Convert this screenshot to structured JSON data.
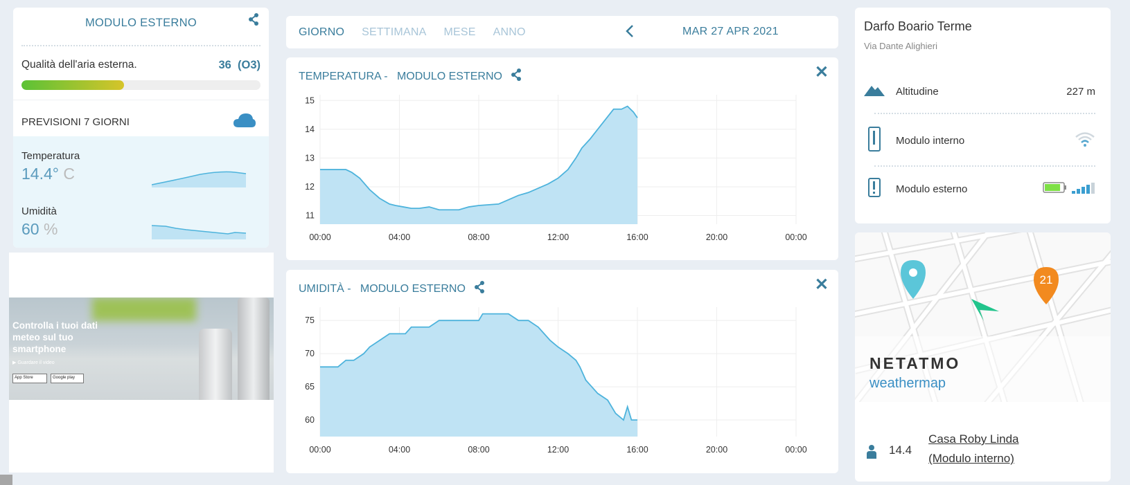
{
  "left_panel": {
    "title": "MODULO ESTERNO",
    "air_quality_label": "Qualità dell'aria esterna.",
    "air_quality_value": "36",
    "air_quality_unit": "(O3)",
    "air_quality_fraction": 0.43,
    "forecast_label": "PREVISIONI 7 GIORNI",
    "temperature_label": "Temperatura",
    "temperature_value": "14.4°",
    "temperature_unit": "C",
    "humidity_label": "Umidità",
    "humidity_value": "60",
    "humidity_unit": "%"
  },
  "ad": {
    "headline": "Controlla i tuoi dati meteo sul tuo smartphone",
    "video_link": "Guardare il video",
    "badge_app_store": "App Store",
    "badge_google": "Google play"
  },
  "nav": {
    "tabs": [
      "GIORNO",
      "SETTIMANA",
      "MESE",
      "ANNO"
    ],
    "active_tab": "GIORNO",
    "date": "MAR 27 APR 2021"
  },
  "temperature_chart": {
    "title": "TEMPERATURA -",
    "module": "MODULO ESTERNO"
  },
  "humidity_chart": {
    "title": "UMIDITÀ -",
    "module": "MODULO ESTERNO"
  },
  "chart_data": [
    {
      "type": "area",
      "title": "TEMPERATURA - MODULO ESTERNO",
      "x_ticks": [
        "00:00",
        "04:00",
        "08:00",
        "12:00",
        "16:00",
        "20:00",
        "00:00"
      ],
      "y_ticks": [
        11,
        12,
        13,
        14,
        15
      ],
      "ylim": [
        10.7,
        15.2
      ],
      "xlim": [
        0,
        24
      ],
      "grid": true,
      "x": [
        0,
        0.3,
        1.3,
        1.6,
        2.0,
        2.5,
        3.0,
        3.5,
        3.8,
        4.2,
        4.6,
        5.0,
        5.5,
        6.0,
        7.0,
        7.5,
        8.0,
        9.0,
        9.5,
        10.0,
        10.5,
        11.0,
        11.5,
        12.0,
        12.5,
        12.9,
        13.2,
        13.6,
        14.0,
        14.4,
        14.8,
        15.2,
        15.5,
        15.8,
        16.0
      ],
      "values": [
        12.6,
        12.6,
        12.6,
        12.5,
        12.3,
        11.9,
        11.6,
        11.4,
        11.35,
        11.3,
        11.25,
        11.25,
        11.3,
        11.2,
        11.2,
        11.3,
        11.35,
        11.4,
        11.55,
        11.7,
        11.8,
        11.95,
        12.1,
        12.3,
        12.6,
        13.0,
        13.35,
        13.65,
        14.0,
        14.35,
        14.7,
        14.7,
        14.8,
        14.6,
        14.4
      ],
      "series_color": "#4db3dc",
      "fill_color": "#bfe3f4"
    },
    {
      "type": "area",
      "title": "UMIDITÀ - MODULO ESTERNO",
      "x_ticks": [
        "00:00",
        "04:00",
        "08:00",
        "12:00",
        "16:00",
        "20:00",
        "00:00"
      ],
      "y_ticks": [
        60,
        65,
        70,
        75
      ],
      "ylim": [
        57.5,
        77
      ],
      "xlim": [
        0,
        24
      ],
      "grid": true,
      "x": [
        0,
        0.9,
        1.3,
        1.7,
        2.2,
        2.5,
        3.0,
        3.5,
        4.3,
        4.6,
        5.0,
        5.5,
        6.0,
        7.0,
        8.0,
        8.2,
        9.0,
        9.5,
        10.0,
        10.5,
        11.0,
        11.3,
        11.6,
        12.0,
        12.5,
        12.9,
        13.1,
        13.4,
        13.7,
        14.0,
        14.5,
        14.9,
        15.3,
        15.5,
        15.7,
        16.0
      ],
      "values": [
        68,
        68,
        69,
        69,
        70,
        71,
        72,
        73,
        73,
        74,
        74,
        74,
        75,
        75,
        75,
        76,
        76,
        76,
        75,
        75,
        74,
        73,
        72,
        71,
        70,
        69,
        68,
        66,
        65,
        64,
        63,
        61,
        60,
        62,
        60,
        60
      ],
      "series_color": "#4db3dc",
      "fill_color": "#bfe3f4"
    }
  ],
  "location": {
    "city": "Darfo Boario Terme",
    "street": "Via Dante Alighieri",
    "altitude_label": "Altitudine",
    "altitude_value": "227 m",
    "indoor_module": "Modulo interno",
    "outdoor_module": "Modulo esterno",
    "outdoor_battery_fraction": 0.85,
    "outdoor_signal_bars": 4
  },
  "map": {
    "brand": "NETATMO",
    "product": "weathermap",
    "marker_count": "21",
    "station_temp": "14.4",
    "station_name_line1": "Casa Roby Linda",
    "station_name_line2": "(Modulo interno)"
  },
  "icons": [
    "share-icon",
    "cloud-icon",
    "chevron-left-icon",
    "close-icon",
    "mountain-icon",
    "indoor-module-icon",
    "wifi-icon",
    "outdoor-module-icon",
    "battery-icon",
    "signal-icon",
    "map-pin-icon",
    "navigation-arrow-icon",
    "person-icon"
  ]
}
